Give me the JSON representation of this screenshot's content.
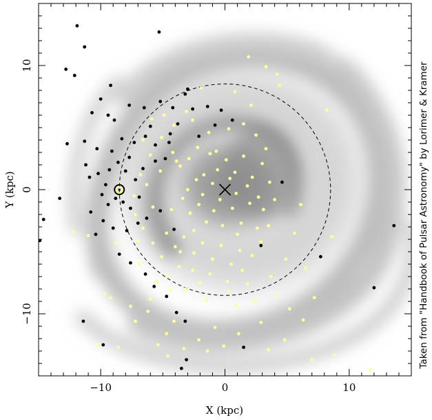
{
  "chart_data": {
    "type": "scatter",
    "title": "",
    "xlabel": "X (kpc)",
    "ylabel": "Y (kpc)",
    "xlim": [
      -15,
      15
    ],
    "ylim": [
      -15,
      15
    ],
    "x_ticks": [
      -10,
      0,
      10
    ],
    "y_ticks": [
      -10,
      0,
      10
    ],
    "grid": false,
    "background": "grey-scale spiral-arm model of the Galactic electron density",
    "annotations": {
      "sun": {
        "x": -8.5,
        "y": 0,
        "symbol": "circled-dot"
      },
      "galactic_centre": {
        "x": 0,
        "y": 0,
        "symbol": "cross"
      },
      "circle_radius_kpc": 8.5
    },
    "credit": "Taken from \"Handbook of Pulsar Astronomy\" by Lorimer & Kramer",
    "series": [
      {
        "color": "#000000",
        "points": [
          [
            -11.9,
            13.2
          ],
          [
            -11.3,
            11.5
          ],
          [
            -12.1,
            9.2
          ],
          [
            -12.8,
            9.7
          ],
          [
            -5.3,
            12.7
          ],
          [
            -9.2,
            8.4
          ],
          [
            -10.0,
            7.3
          ],
          [
            -10.7,
            6.2
          ],
          [
            -9.4,
            6.0
          ],
          [
            -8.9,
            5.6
          ],
          [
            -7.7,
            6.8
          ],
          [
            -6.5,
            6.6
          ],
          [
            -5.2,
            7.1
          ],
          [
            -4.2,
            6.6
          ],
          [
            -3.2,
            7.7
          ],
          [
            -3.0,
            8.1
          ],
          [
            -2.6,
            6.5
          ],
          [
            -12.7,
            3.7
          ],
          [
            -11.3,
            3.9
          ],
          [
            -11.2,
            2.0
          ],
          [
            -10.3,
            3.3
          ],
          [
            -9.1,
            3.1
          ],
          [
            -8.3,
            4.1
          ],
          [
            -7.3,
            3.8
          ],
          [
            -6.4,
            4.3
          ],
          [
            -5.6,
            3.6
          ],
          [
            -4.5,
            3.8
          ],
          [
            -10.9,
            1.0
          ],
          [
            -10.2,
            1.3
          ],
          [
            -9.6,
            0.4
          ],
          [
            -9.3,
            1.6
          ],
          [
            -8.0,
            1.5
          ],
          [
            -7.2,
            0.8
          ],
          [
            -6.6,
            1.7
          ],
          [
            -9.9,
            -0.4
          ],
          [
            -9.4,
            -1.2
          ],
          [
            -8.8,
            -0.7
          ],
          [
            -8.2,
            -1.0
          ],
          [
            -7.6,
            -1.5
          ],
          [
            -6.9,
            -0.6
          ],
          [
            -10.8,
            -1.8
          ],
          [
            -9.8,
            -2.5
          ],
          [
            -10.4,
            -3.6
          ],
          [
            -9.0,
            -3.1
          ],
          [
            -7.9,
            -3.3
          ],
          [
            -7.0,
            -2.7
          ],
          [
            -13.3,
            -0.7
          ],
          [
            -14.6,
            -2.4
          ],
          [
            -14.9,
            -4.1
          ],
          [
            -8.5,
            -5.2
          ],
          [
            -7.6,
            -5.9
          ],
          [
            -6.4,
            -6.8
          ],
          [
            -5.7,
            -7.8
          ],
          [
            -4.7,
            -8.6
          ],
          [
            -3.9,
            -9.9
          ],
          [
            -3.2,
            -10.6
          ],
          [
            -11.4,
            -10.6
          ],
          [
            -9.8,
            -12.5
          ],
          [
            -3.5,
            -14.4
          ],
          [
            -3.1,
            -13.7
          ],
          [
            1.5,
            -12.7
          ],
          [
            7.7,
            -5.4
          ],
          [
            12.0,
            -7.9
          ],
          [
            13.6,
            -2.9
          ],
          [
            2.9,
            -4.5
          ],
          [
            4.6,
            0.6
          ],
          [
            -6.3,
            -2.3
          ],
          [
            -5.2,
            -1.7
          ],
          [
            -4.1,
            -3.2
          ],
          [
            -5.6,
            2.3
          ],
          [
            -4.8,
            2.5
          ],
          [
            -7.7,
            2.6
          ],
          [
            -8.6,
            2.2
          ],
          [
            -6.0,
            5.1
          ],
          [
            -2.1,
            4.3
          ],
          [
            -3.8,
            5.3
          ],
          [
            -1.4,
            6.7
          ],
          [
            -0.8,
            5.2
          ],
          [
            -0.3,
            6.4
          ],
          [
            0.6,
            5.6
          ],
          [
            -4.4,
            4.5
          ]
        ]
      },
      {
        "color": "#ffff99",
        "points": [
          [
            -4.2,
            3.0
          ],
          [
            -3.6,
            1.9
          ],
          [
            -2.9,
            2.5
          ],
          [
            -2.2,
            3.4
          ],
          [
            -1.7,
            1.2
          ],
          [
            -1.2,
            2.9
          ],
          [
            -0.6,
            1.6
          ],
          [
            0.1,
            2.4
          ],
          [
            0.8,
            1.4
          ],
          [
            1.5,
            2.7
          ],
          [
            2.2,
            1.0
          ],
          [
            -3.4,
            -0.7
          ],
          [
            -2.8,
            -1.9
          ],
          [
            -2.1,
            -1.2
          ],
          [
            -1.5,
            -2.6
          ],
          [
            -0.9,
            -1.7
          ],
          [
            -0.2,
            -2.9
          ],
          [
            0.6,
            -1.5
          ],
          [
            1.3,
            -2.7
          ],
          [
            2.0,
            -1.1
          ],
          [
            2.6,
            -3.1
          ],
          [
            -4.7,
            -3.5
          ],
          [
            -4.0,
            -4.6
          ],
          [
            -3.3,
            -3.8
          ],
          [
            -2.5,
            -5.1
          ],
          [
            -1.8,
            -4.3
          ],
          [
            -1.0,
            -5.6
          ],
          [
            -0.3,
            -4.5
          ],
          [
            0.5,
            -6.0
          ],
          [
            1.2,
            -4.9
          ],
          [
            -5.8,
            -1.4
          ],
          [
            -6.3,
            0.4
          ],
          [
            -5.2,
            1.5
          ],
          [
            -6.0,
            2.8
          ],
          [
            -5.1,
            4.2
          ],
          [
            -4.1,
            5.2
          ],
          [
            -2.6,
            5.6
          ],
          [
            -1.3,
            4.6
          ],
          [
            0.3,
            4.9
          ],
          [
            1.5,
            5.3
          ],
          [
            2.5,
            4.4
          ],
          [
            3.3,
            3.3
          ],
          [
            3.0,
            2.1
          ],
          [
            3.6,
            0.6
          ],
          [
            4.0,
            -0.8
          ],
          [
            3.1,
            -1.6
          ],
          [
            3.5,
            -2.9
          ],
          [
            2.9,
            -4.2
          ],
          [
            2.2,
            -5.3
          ],
          [
            1.4,
            -6.5
          ],
          [
            0.2,
            -7.4
          ],
          [
            -1.2,
            -6.8
          ],
          [
            -2.6,
            -6.5
          ],
          [
            -3.7,
            -6.2
          ],
          [
            -4.6,
            -6.9
          ],
          [
            -5.1,
            -5.4
          ],
          [
            -5.8,
            -4.3
          ],
          [
            -6.6,
            -3.1
          ],
          [
            -7.2,
            -2.0
          ],
          [
            -6.8,
            1.2
          ],
          [
            -7.3,
            -0.5
          ],
          [
            -1.8,
            -0.4
          ],
          [
            -1.0,
            0.5
          ],
          [
            -0.4,
            -0.8
          ],
          [
            0.9,
            -0.3
          ],
          [
            1.8,
            0.3
          ],
          [
            -2.3,
            0.8
          ],
          [
            -3.0,
            0.0
          ],
          [
            1.9,
            10.7
          ],
          [
            3.3,
            9.9
          ],
          [
            4.4,
            8.4
          ],
          [
            4.2,
            9.3
          ],
          [
            8.2,
            6.4
          ],
          [
            8.6,
            -3.8
          ],
          [
            6.1,
            -1.2
          ],
          [
            6.5,
            -6.3
          ],
          [
            7.2,
            -8.7
          ],
          [
            7.0,
            -13.7
          ],
          [
            8.8,
            -13.3
          ],
          [
            11.7,
            -14.5
          ],
          [
            4.8,
            -12.1
          ],
          [
            2.9,
            -10.7
          ],
          [
            1.1,
            -11.6
          ],
          [
            -0.8,
            -11.1
          ],
          [
            -2.1,
            -12.1
          ],
          [
            -3.3,
            -12.8
          ],
          [
            -4.6,
            -13.4
          ],
          [
            -4.1,
            -10.6
          ],
          [
            -6.2,
            -9.8
          ],
          [
            -7.2,
            -10.6
          ],
          [
            -7.6,
            -9.4
          ],
          [
            -8.6,
            -12.7
          ],
          [
            -9.2,
            -8.7
          ],
          [
            -10.3,
            -12.5
          ],
          [
            -9.7,
            -8.4
          ],
          [
            -11.0,
            -3.7
          ],
          [
            -12.2,
            -3.4
          ],
          [
            -8.8,
            -4.3
          ],
          [
            -6.0,
            -8.8
          ],
          [
            -4.4,
            -8.1
          ],
          [
            -3.2,
            -8.0
          ],
          [
            -1.5,
            -8.9
          ],
          [
            0.3,
            -8.2
          ],
          [
            1.8,
            -7.6
          ],
          [
            3.7,
            -7.0
          ],
          [
            4.9,
            -5.6
          ],
          [
            5.6,
            -3.5
          ],
          [
            2.1,
            6.8
          ],
          [
            0.8,
            7.9
          ],
          [
            -1.9,
            8.2
          ],
          [
            -3.1,
            6.3
          ],
          [
            -4.9,
            6.0
          ],
          [
            -5.9,
            5.7
          ],
          [
            -6.6,
            4.0
          ],
          [
            -7.0,
            -4.1
          ],
          [
            -4.3,
            -1.6
          ],
          [
            -3.9,
            2.3
          ],
          [
            2.7,
            -0.6
          ],
          [
            0.4,
            0.9
          ],
          [
            -0.7,
            3.1
          ],
          [
            -2.5,
            -3.3
          ],
          [
            1.0,
            -3.6
          ],
          [
            -6.9,
            -6.0
          ],
          [
            -5.5,
            -7.4
          ],
          [
            -3.6,
            -5.0
          ],
          [
            -2.0,
            -7.5
          ],
          [
            0.9,
            -9.3
          ],
          [
            2.4,
            -9.0
          ],
          [
            4.1,
            -8.6
          ],
          [
            5.2,
            -9.6
          ],
          [
            6.3,
            -10.5
          ],
          [
            3.5,
            -12.9
          ],
          [
            -0.1,
            -12.6
          ],
          [
            -1.4,
            -13.0
          ],
          [
            -4.7,
            -11.6
          ],
          [
            -5.4,
            -12.5
          ]
        ]
      }
    ]
  }
}
